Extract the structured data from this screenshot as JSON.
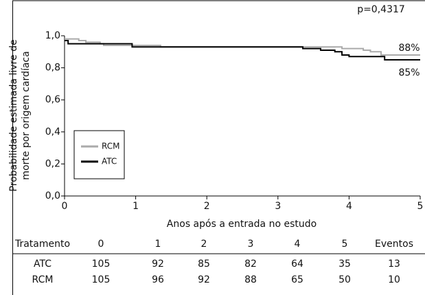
{
  "chart_data": {
    "type": "step",
    "annotations": [
      "p=0,4317",
      "88%",
      "85%"
    ],
    "xlabel": "Anos após a entrada no estudo",
    "ylabel": [
      "Probabilidade estimada livre de",
      "morte por origem cardíaca"
    ],
    "xlim": [
      0,
      5
    ],
    "xticks": [
      0,
      1,
      2,
      3,
      4,
      5
    ],
    "ylim": [
      0,
      1
    ],
    "yticks": [
      {
        "value": 0,
        "label": "0,0"
      },
      {
        "value": 0.2,
        "label": "0,2"
      },
      {
        "value": 0.4,
        "label": "0,4"
      },
      {
        "value": 0.6,
        "label": "0,6"
      },
      {
        "value": 0.8,
        "label": "0,8"
      },
      {
        "value": 1,
        "label": "1,0"
      }
    ],
    "series": [
      {
        "name": "RCM",
        "color": "#aaaaaa",
        "x": [
          0,
          0.2,
          0.3,
          0.5,
          0.55,
          1.35,
          3.9,
          4.2,
          4.3,
          4.45,
          5
        ],
        "values": [
          0.98,
          0.97,
          0.96,
          0.95,
          0.94,
          0.93,
          0.92,
          0.91,
          0.9,
          0.88,
          0.88
        ]
      },
      {
        "name": "ATC",
        "color": "#000000",
        "x": [
          0,
          0.05,
          0.95,
          3.35,
          3.6,
          3.8,
          3.9,
          4.0,
          4.5,
          5
        ],
        "values": [
          0.97,
          0.95,
          0.93,
          0.92,
          0.91,
          0.9,
          0.88,
          0.87,
          0.85,
          0.85
        ]
      }
    ]
  },
  "table": {
    "header": [
      "Tratamento",
      "0",
      "1",
      "2",
      "3",
      "4",
      "5",
      "Eventos"
    ],
    "rows": [
      [
        "ATC",
        "105",
        "92",
        "85",
        "82",
        "64",
        "35",
        "13"
      ],
      [
        "RCM",
        "105",
        "96",
        "92",
        "88",
        "65",
        "50",
        "10"
      ]
    ]
  }
}
